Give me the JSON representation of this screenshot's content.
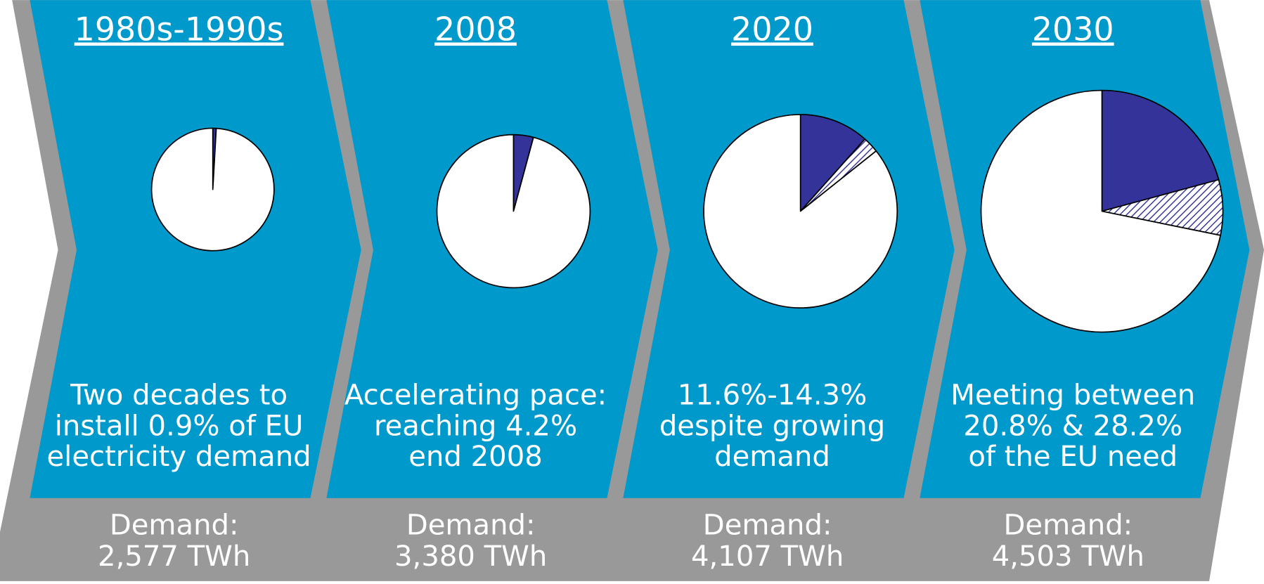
{
  "chart_data": [
    {
      "type": "pie",
      "title": "1980s-1990s",
      "caption": [
        "Two decades to",
        "install 0.9% of EU",
        "electricity demand"
      ],
      "demand_label": "Demand:",
      "demand": "2,577 TWh",
      "values": [
        0.9,
        99.1
      ],
      "colors": [
        "#333399",
        "#ffffff"
      ],
      "hatched": [
        false,
        false
      ]
    },
    {
      "type": "pie",
      "title": "2008",
      "caption": [
        "Accelerating pace:",
        "reaching 4.2%",
        "end 2008"
      ],
      "demand_label": "Demand:",
      "demand": "3,380 TWh",
      "values": [
        4.2,
        95.8
      ],
      "colors": [
        "#333399",
        "#ffffff"
      ],
      "hatched": [
        false,
        false
      ]
    },
    {
      "type": "pie",
      "title": "2020",
      "caption": [
        "11.6%-14.3%",
        "despite growing",
        "demand"
      ],
      "demand_label": "Demand:",
      "demand": "4,107 TWh",
      "values": [
        11.6,
        2.7,
        85.7
      ],
      "colors": [
        "#333399",
        "#333399",
        "#ffffff"
      ],
      "hatched": [
        false,
        true,
        false
      ]
    },
    {
      "type": "pie",
      "title": "2030",
      "caption": [
        "Meeting between",
        "20.8% & 28.2%",
        "of the EU need"
      ],
      "demand_label": "Demand:",
      "demand": "4,503 TWh",
      "values": [
        20.8,
        7.4,
        71.8
      ],
      "colors": [
        "#333399",
        "#333399",
        "#ffffff"
      ],
      "hatched": [
        false,
        true,
        false
      ]
    }
  ]
}
